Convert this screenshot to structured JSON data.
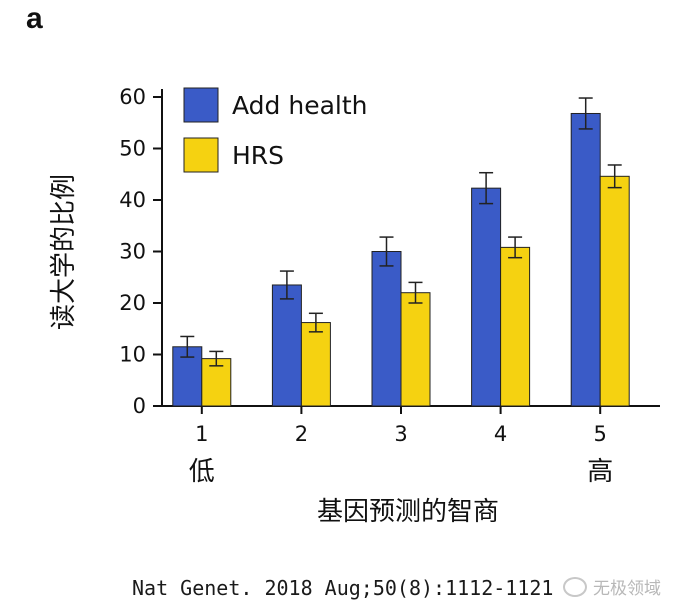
{
  "panel_label": "a",
  "citation": "Nat Genet. 2018 Aug;50(8):1112-1121",
  "watermark": "无极领域",
  "chart_data": {
    "type": "bar",
    "categories": [
      "1",
      "2",
      "3",
      "4",
      "5"
    ],
    "category_sublabels": {
      "first": "低",
      "last": "高"
    },
    "xlabel": "基因预测的智商",
    "ylabel": "读大学的比例",
    "ylim": [
      0,
      60
    ],
    "yticks": [
      0,
      10,
      20,
      30,
      40,
      50,
      60
    ],
    "legend_position": "top-left",
    "grid": false,
    "error_bars": true,
    "series": [
      {
        "name": "Add health",
        "color": "#3a5bc7",
        "values": [
          11.5,
          23.5,
          30.0,
          42.3,
          56.8
        ],
        "errors": [
          2.0,
          2.7,
          2.8,
          3.0,
          3.0
        ]
      },
      {
        "name": "HRS",
        "color": "#f5d211",
        "values": [
          9.2,
          16.2,
          22.0,
          30.8,
          44.6
        ],
        "errors": [
          1.4,
          1.8,
          2.0,
          2.0,
          2.2
        ]
      }
    ]
  }
}
